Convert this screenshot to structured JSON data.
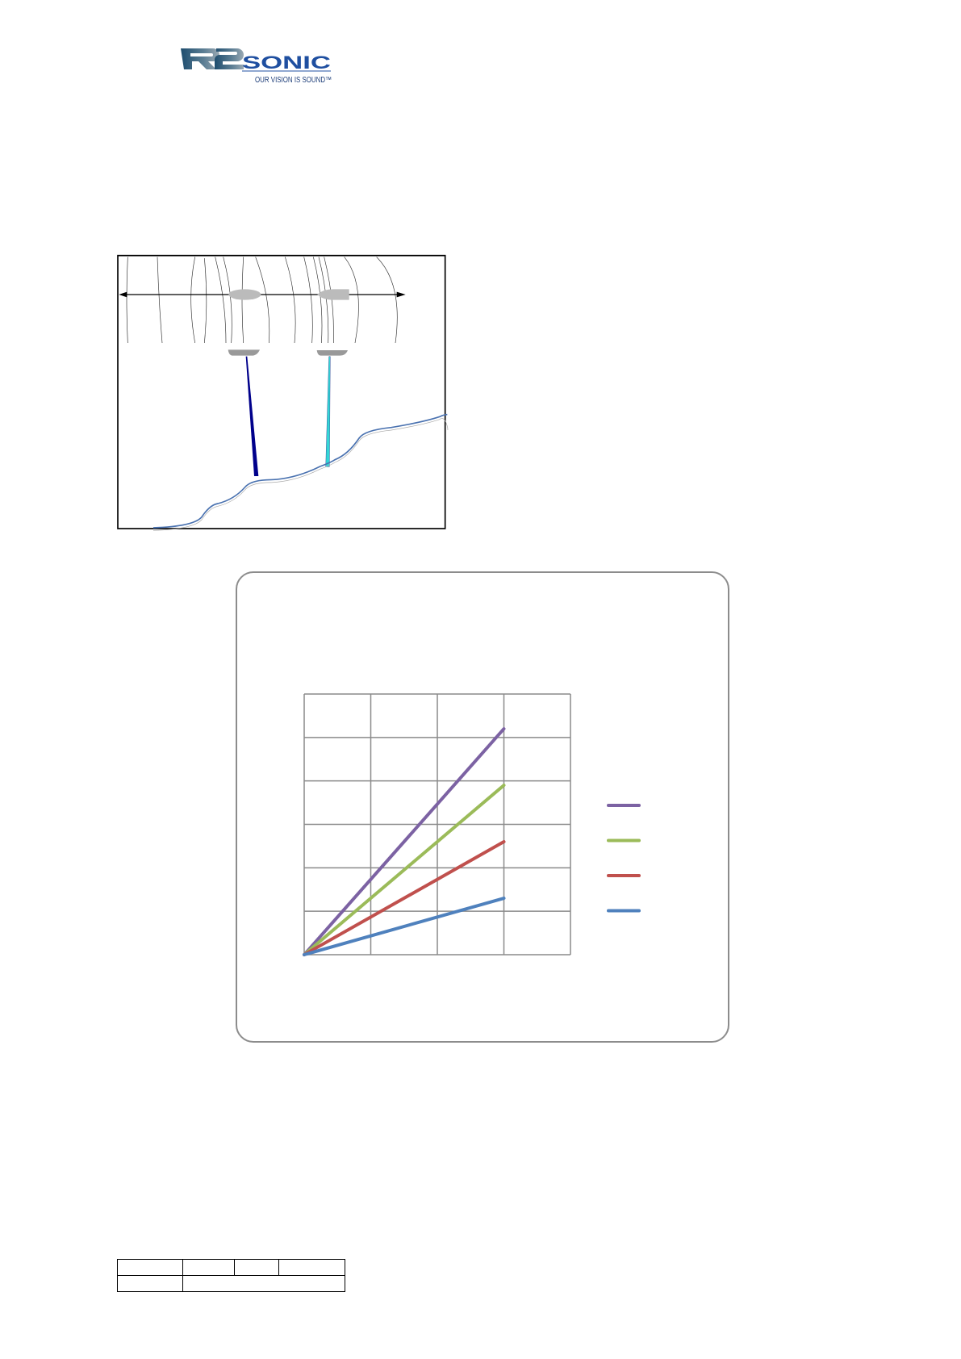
{
  "header": {
    "logo": {
      "brand": "R2SONIC",
      "tagline": "OUR VISION IS SOUND™"
    }
  },
  "figure": {
    "colors": {
      "beam_left": "#00008b",
      "beam_right": "#33d6d6",
      "seafloor": "#4a72b0"
    }
  },
  "chart_data": {
    "type": "line",
    "title": "",
    "xlabel": "",
    "ylabel": "",
    "xlim": [
      0,
      4
    ],
    "ylim": [
      0,
      6
    ],
    "grid": true,
    "legend": "right",
    "x": [
      0,
      3
    ],
    "series": [
      {
        "values": [
          0,
          5.2
        ],
        "color": "#7c62a3"
      },
      {
        "values": [
          0,
          3.9
        ],
        "color": "#9bbb59"
      },
      {
        "values": [
          0,
          2.6
        ],
        "color": "#c0504d"
      },
      {
        "values": [
          0,
          1.3
        ],
        "color": "#4f81bd"
      }
    ]
  },
  "footer_table": {
    "rows": [
      [
        "",
        "",
        "",
        ""
      ],
      [
        "",
        ""
      ]
    ]
  }
}
